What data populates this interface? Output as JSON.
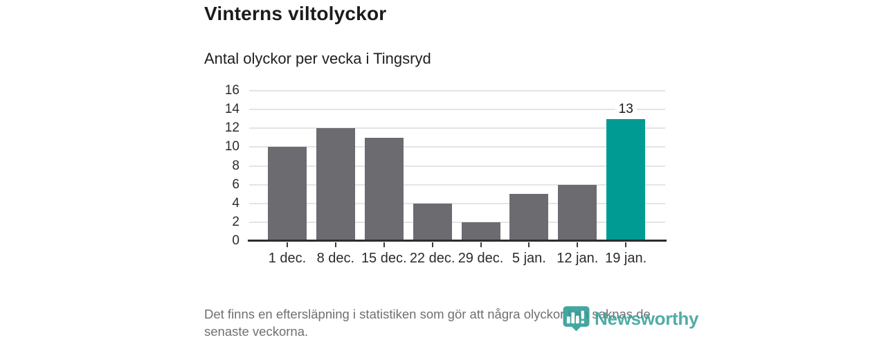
{
  "header": {
    "title": "Vinterns viltolyckor",
    "subtitle": "Antal olyckor per vecka i Tingsryd"
  },
  "chart_data": {
    "type": "bar",
    "title": "Vinterns viltolyckor",
    "subtitle": "Antal olyckor per vecka i Tingsryd",
    "categories": [
      "1 dec.",
      "8 dec.",
      "15 dec.",
      "22 dec.",
      "29 dec.",
      "5 jan.",
      "12 jan.",
      "19 jan."
    ],
    "values": [
      10,
      12,
      11,
      4,
      2,
      5,
      6,
      13
    ],
    "highlighted_index": 7,
    "highlighted_value_label": "13",
    "ylim": [
      0,
      16
    ],
    "ytick_step": 2,
    "grid": "horizontal-only",
    "legend": "none",
    "bar_color": "#6c6b70",
    "highlight_color": "#009b93"
  },
  "footer": {
    "note": "Det finns en eftersläpning i statistiken som gör att några olyckor kan saknas de senaste veckorna.",
    "logo_text": "Newsworthy"
  },
  "theme": {
    "accent": "#009b93",
    "logo_color": "#38a29a",
    "text_dark": "#1b1b1b",
    "text_muted": "#707070",
    "gridline_color": "#e4e4e4",
    "axis_line_color": "#2c2c30"
  }
}
